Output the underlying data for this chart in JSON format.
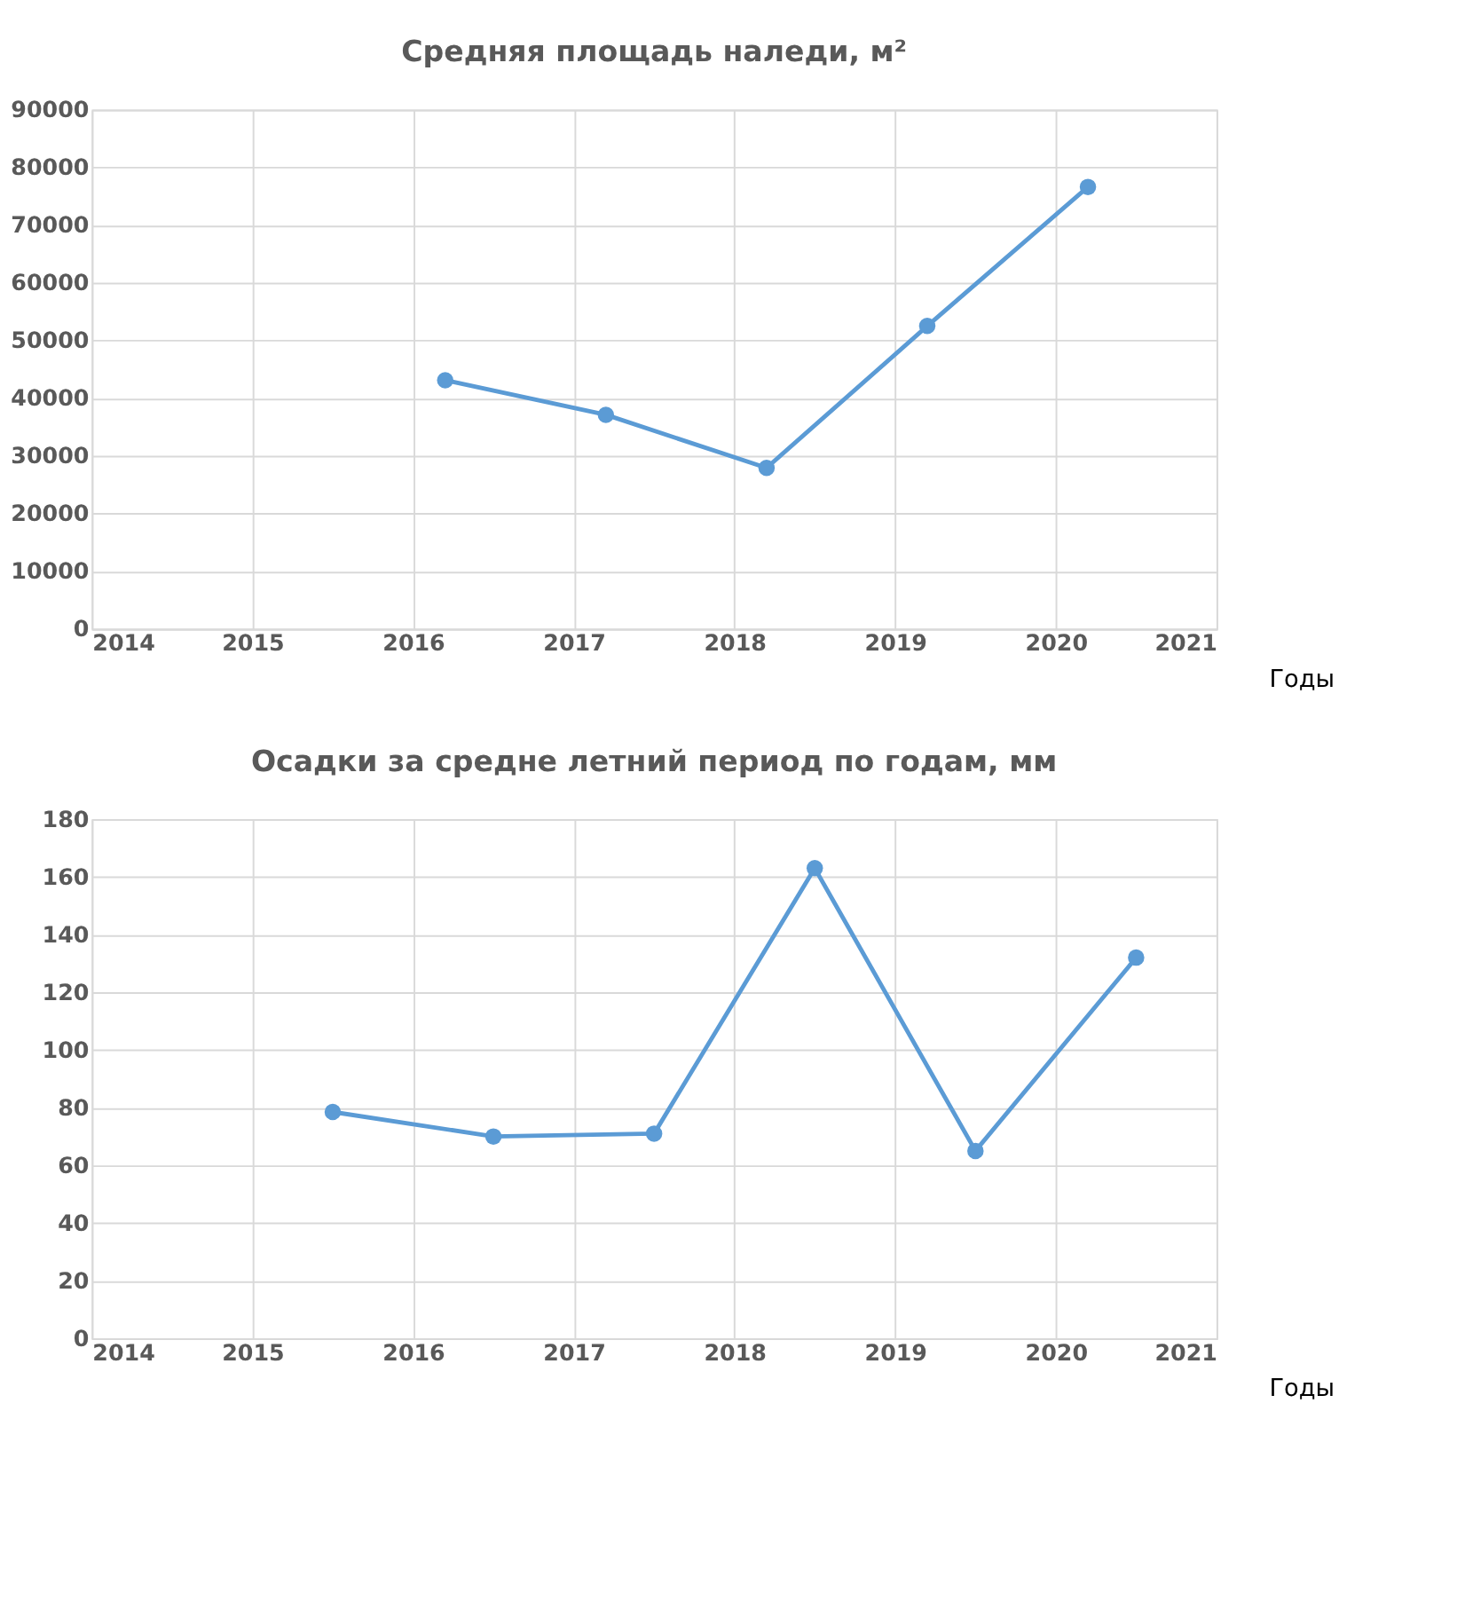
{
  "chart_data": [
    {
      "type": "line",
      "title": "Средняя площадь наледи, м²",
      "xlabel": "Годы",
      "x": [
        2016.2,
        2017.2,
        2018.2,
        2019.2,
        2020.2
      ],
      "series": [
        {
          "color": "#5b9bd5",
          "values": [
            43100,
            37100,
            27900,
            52500,
            76600
          ]
        }
      ],
      "xlim": [
        2014,
        2021
      ],
      "xticks": [
        2014,
        2015,
        2016,
        2017,
        2018,
        2019,
        2020,
        2021
      ],
      "ylim": [
        0,
        90000
      ],
      "yticks": [
        0,
        10000,
        20000,
        30000,
        40000,
        50000,
        60000,
        70000,
        80000,
        90000
      ],
      "grid": true,
      "marker": "circle",
      "line_style": "solid"
    },
    {
      "type": "line",
      "title": "Осадки за средне летний период по годам, мм",
      "xlabel": "Годы",
      "x": [
        2015.5,
        2016.5,
        2017.5,
        2018.5,
        2019.5,
        2020.5
      ],
      "series": [
        {
          "color": "#5b9bd5",
          "values": [
            78.5,
            70,
            71,
            163,
            65,
            132
          ]
        }
      ],
      "xlim": [
        2014,
        2021
      ],
      "xticks": [
        2014,
        2015,
        2016,
        2017,
        2018,
        2019,
        2020,
        2021
      ],
      "ylim": [
        0,
        180
      ],
      "yticks": [
        0,
        20,
        40,
        60,
        80,
        100,
        120,
        140,
        160,
        180
      ],
      "grid": true,
      "marker": "circle",
      "line_style": "solid"
    }
  ]
}
